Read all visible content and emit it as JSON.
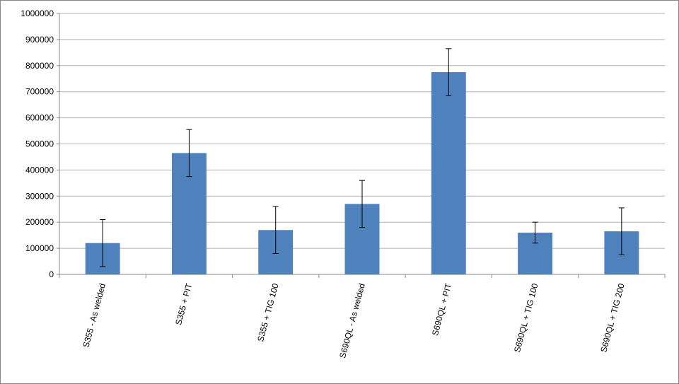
{
  "chart_data": {
    "type": "bar",
    "categories": [
      "S355 - As welded",
      "S355 + PIT",
      "S355 + TIG 100",
      "S690QL - As welded",
      "S690QL + PIT",
      "S690QL + TIG 100",
      "S690QL + TIG 200"
    ],
    "values": [
      120000,
      465000,
      170000,
      270000,
      775000,
      160000,
      165000
    ],
    "errors": [
      90000,
      90000,
      90000,
      90000,
      90000,
      40000,
      90000
    ],
    "color": "#4f81bd",
    "error_color": "#000000",
    "ylim": [
      0,
      1000000
    ],
    "yticks": [
      0,
      100000,
      200000,
      300000,
      400000,
      500000,
      600000,
      700000,
      800000,
      900000,
      1000000
    ],
    "grid": true
  }
}
